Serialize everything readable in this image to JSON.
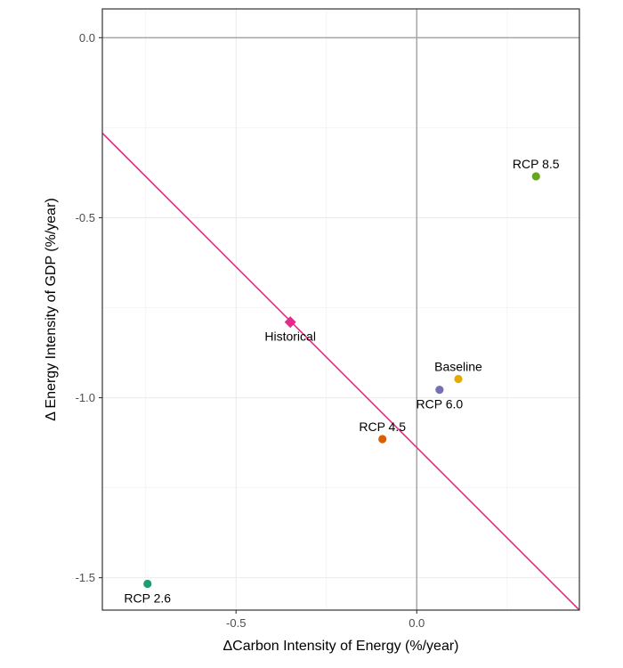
{
  "chart_data": {
    "type": "scatter",
    "title": "",
    "xlabel": "ΔCarbon Intensity of Energy (%/year)",
    "ylabel": "Δ Energy Intensity of GDP (%/year)",
    "xlim": [
      -0.87,
      0.45
    ],
    "ylim": [
      -1.59,
      0.08
    ],
    "x_ticks": [
      -0.5,
      0.0
    ],
    "x_tick_labels": [
      "-0.5",
      "0.0"
    ],
    "y_ticks": [
      0.0,
      -0.5,
      -1.0,
      -1.5
    ],
    "y_tick_labels": [
      "0.0",
      "-0.5",
      "-1.0",
      "-1.5"
    ],
    "grid": true,
    "reference_lines": {
      "x": 0,
      "y": 0,
      "color": "#a6a6a6"
    },
    "trend_line": {
      "color": "#e7298a",
      "points": [
        {
          "x": -0.87,
          "y": -0.265
        },
        {
          "x": 0.45,
          "y": -1.59
        }
      ]
    },
    "points": [
      {
        "label": "RCP 8.5",
        "x": 0.33,
        "y": -0.385,
        "color": "#66a61e",
        "shape": "circle",
        "label_pos": "above"
      },
      {
        "label": "Historical",
        "x": -0.35,
        "y": -0.79,
        "color": "#e7298a",
        "shape": "diamond",
        "label_pos": "below"
      },
      {
        "label": "Baseline",
        "x": 0.115,
        "y": -0.948,
        "color": "#e6ab02",
        "shape": "circle",
        "label_pos": "above"
      },
      {
        "label": "RCP 6.0",
        "x": 0.063,
        "y": -0.978,
        "color": "#7570b3",
        "shape": "circle",
        "label_pos": "below"
      },
      {
        "label": "RCP 4.5",
        "x": -0.095,
        "y": -1.115,
        "color": "#d95f02",
        "shape": "circle",
        "label_pos": "above"
      },
      {
        "label": "RCP 2.6",
        "x": -0.745,
        "y": -1.517,
        "color": "#1b9e77",
        "shape": "circle",
        "label_pos": "below"
      }
    ]
  }
}
